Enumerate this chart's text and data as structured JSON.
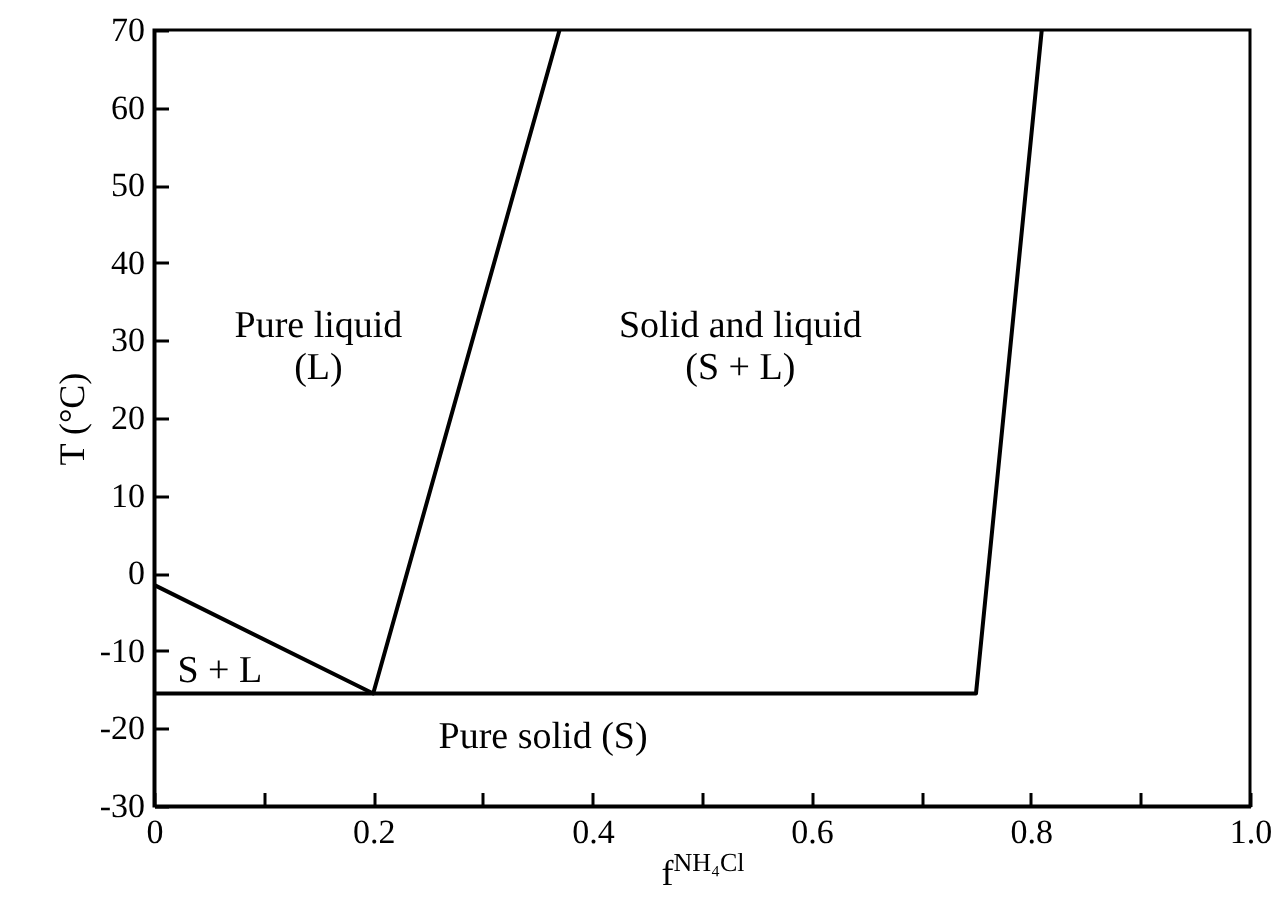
{
  "chart_data": {
    "type": "line",
    "xlabel": "f$^{NH₄Cl}$",
    "ylabel": "T (°C)",
    "series": [
      {
        "color": "#000000",
        "x": [
          0,
          0.2,
          0.37
        ],
        "values": [
          -1.5,
          -15.5,
          70
        ]
      },
      {
        "color": "#000000",
        "x": [
          0,
          0.75,
          0.81
        ],
        "values": [
          -15.5,
          -15.5,
          70
        ]
      }
    ],
    "xlim": [
      0,
      1
    ],
    "ylim": [
      -30,
      70
    ],
    "xticks": [
      0,
      {
        "value": 0.1,
        "label": null
      },
      0.2,
      {
        "value": 0.3,
        "label": null
      },
      0.4,
      {
        "value": 0.5,
        "label": null
      },
      0.6,
      {
        "value": 0.7,
        "label": null
      },
      0.8,
      {
        "value": 0.9,
        "label": null
      },
      {
        "value": 1,
        "label": "1.0"
      }
    ],
    "yticks": [
      -30,
      -20,
      -10,
      0,
      10,
      20,
      30,
      40,
      50,
      60,
      70
    ],
    "annotations": [
      "Pure liquid\n(L)",
      "Solid and liquid\n(S + L)",
      "S + L",
      "Pure solid (S)"
    ],
    "grid": false,
    "marker": "none",
    "line_style": "solid"
  }
}
